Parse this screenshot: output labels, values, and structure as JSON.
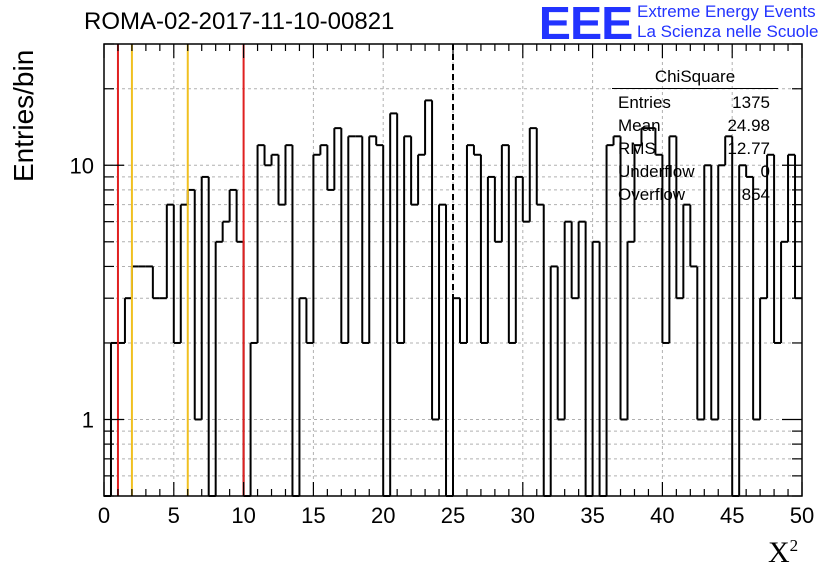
{
  "title": "ROMA-02-2017-11-10-00821",
  "logo": {
    "mark": "EEE",
    "line1": "Extreme Energy Events",
    "line2": "La Scienza nelle Scuole",
    "color": "#2233ff"
  },
  "stats_box": {
    "title": "ChiSquare",
    "rows": [
      {
        "label": "Entries",
        "value": "1375"
      },
      {
        "label": "Mean",
        "value": "24.98"
      },
      {
        "label": "RMS",
        "value": "12.77"
      },
      {
        "label": "Underflow",
        "value": "0"
      },
      {
        "label": "Overflow",
        "value": "854"
      }
    ]
  },
  "chart_data": {
    "type": "bar",
    "style": "step-histogram",
    "title": "ROMA-02-2017-11-10-00821",
    "xlabel": "X²",
    "ylabel": "Entries/bin",
    "xlim": [
      0,
      50
    ],
    "ylim": [
      0.5,
      30
    ],
    "yscale": "log",
    "grid": true,
    "x_ticks": [
      "0",
      "5",
      "10",
      "15",
      "20",
      "25",
      "30",
      "35",
      "40",
      "45",
      "50"
    ],
    "y_ticks": [
      "1",
      "10"
    ],
    "bin_width": 0.5,
    "values": [
      0,
      2,
      2,
      3,
      4,
      4,
      4,
      3,
      3,
      7,
      2,
      7,
      8,
      1,
      9,
      0,
      5,
      6,
      8,
      5,
      0,
      2,
      12,
      10,
      11,
      7,
      12,
      0,
      3,
      2,
      11,
      12,
      8,
      14,
      2,
      13,
      13,
      2,
      13,
      12,
      0,
      16,
      2,
      13,
      7,
      11,
      18,
      1,
      7,
      0,
      3,
      2,
      12,
      11,
      2,
      9,
      5,
      12,
      2,
      9,
      6,
      14,
      7,
      0,
      4,
      1,
      6,
      3,
      6,
      0,
      5,
      0,
      12,
      13,
      1,
      5,
      12,
      14,
      14,
      11,
      2,
      13,
      3,
      7,
      4,
      1,
      10,
      1,
      10,
      13,
      0,
      10,
      9,
      1,
      3,
      11,
      2,
      5,
      11,
      3
    ],
    "vertical_lines": [
      {
        "x": 1,
        "color": "#e02020"
      },
      {
        "x": 2,
        "color": "#f0c020"
      },
      {
        "x": 6,
        "color": "#f0c020"
      },
      {
        "x": 10,
        "color": "#e02020"
      },
      {
        "x": 25,
        "color": "#000000",
        "dashed": true
      }
    ]
  }
}
